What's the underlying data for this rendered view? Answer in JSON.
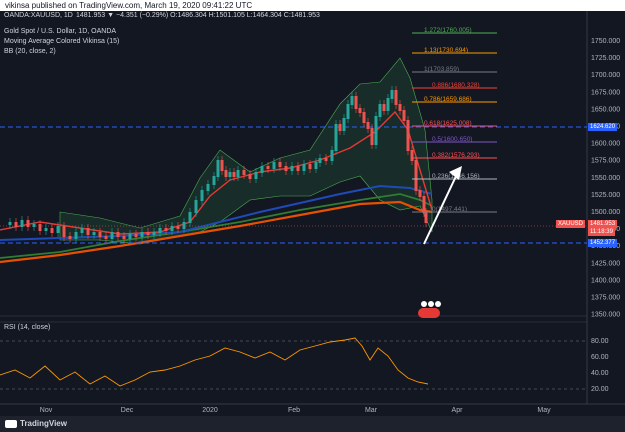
{
  "topbar": {
    "published": "vikinsa published on TradingView.com, March 19, 2020 09:41:22 UTC"
  },
  "header": {
    "symbol": "OANDA:XAUUSD, 1D",
    "ohlc": "1481.953  ▼ −4.351 (−0.29%)  O:1486.304  H:1501.105  L:1464.304  C:1481.953",
    "chart_title": "Gold Spot / U.S. Dollar, 1D, OANDA",
    "indicator_ma": "Moving Average Colored Vikinsa (15)",
    "indicator_bb": "BB (20, close, 2)"
  },
  "price_axis": {
    "ticks": [
      "1750.000",
      "1725.000",
      "1700.000",
      "1675.000",
      "1650.000",
      "1625.000",
      "1600.000",
      "1575.000",
      "1550.000",
      "1525.000",
      "1500.000",
      "1475.000",
      "1450.000",
      "1425.000",
      "1400.000",
      "1375.000",
      "1350.000"
    ],
    "tags": {
      "level_top": "1624.620",
      "symbol": "XAUUSD",
      "price": "1481.953",
      "countdown": "11:18:39",
      "level_bottom": "1452.377"
    }
  },
  "time_axis": {
    "labels": [
      "Nov",
      "Dec",
      "2020",
      "Feb",
      "Mar",
      "Apr",
      "May"
    ]
  },
  "fib_levels": [
    {
      "label": "1.272(1760.005)",
      "color": "#4caf50"
    },
    {
      "label": "1.13(1730.694)",
      "color": "#ff9800"
    },
    {
      "label": "1(1703.859)",
      "color": "#787b86"
    },
    {
      "label": "0.886(1680.328)",
      "color": "#f44336"
    },
    {
      "label": "0.786(1659.686)",
      "color": "#ff9800"
    },
    {
      "label": "0.618(1625.008)",
      "color": "#ff5252"
    },
    {
      "label": "0.5(1600.650)",
      "color": "#7e57c2"
    },
    {
      "label": "0.382(1576.293)",
      "color": "#ff5252"
    },
    {
      "label": "0.236(1546.156)",
      "color": "#b2b5be"
    },
    {
      "label": "0(1497.441)",
      "color": "#787b86"
    }
  ],
  "rsi": {
    "label": "RSI (14, close)",
    "ticks": [
      "80.00",
      "60.00",
      "40.00",
      "20.00"
    ]
  },
  "footer": {
    "brand": "TradingView"
  },
  "colors": {
    "background": "#131722",
    "up": "#26a69a",
    "down": "#ef5350",
    "ma_red": "#e53935",
    "ma_orange": "#e65100",
    "ma_green": "#2e7d32",
    "ma_blue": "#1e4bb8",
    "rsi": "#ff9800",
    "guide_blue": "#2962ff"
  }
}
